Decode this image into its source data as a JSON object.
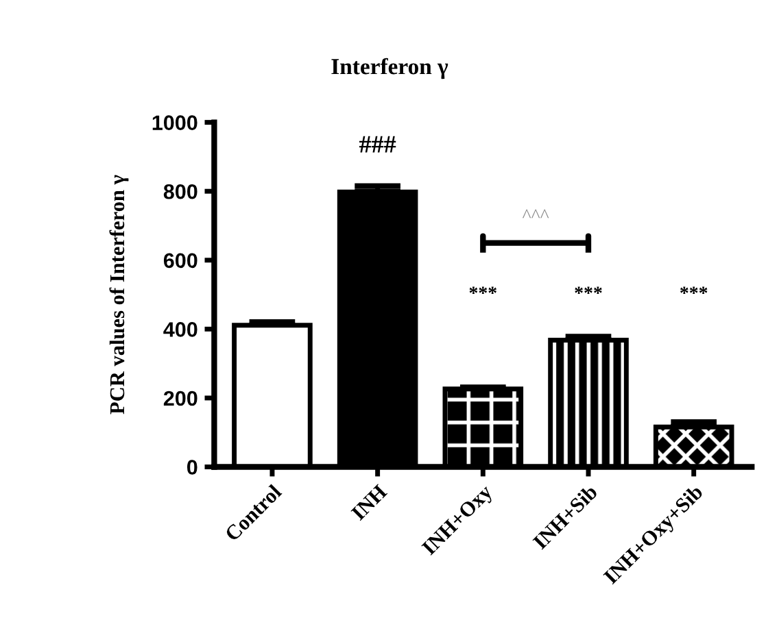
{
  "chart_data": {
    "type": "bar",
    "title": "Interferon γ",
    "ylabel": "PCR values of Interferon γ",
    "categories": [
      "Control",
      "INH",
      "INH+Oxy",
      "INH+Sib",
      "INH+Oxy+Sib"
    ],
    "values": [
      411,
      798,
      226,
      368,
      116
    ],
    "colors": [
      "#ffffff",
      "#000000",
      "#000000",
      "#000000",
      "#000000"
    ],
    "errors": [
      [
        411,
        420
      ],
      [
        798,
        815
      ],
      [
        226,
        231
      ],
      [
        368,
        378
      ],
      [
        116,
        130
      ]
    ],
    "ylim": [
      0,
      1000
    ],
    "yticks": [
      0,
      200,
      400,
      600,
      800,
      1000
    ],
    "grid": false,
    "annotations": [
      "###",
      "***",
      "***",
      "***",
      "^^^"
    ]
  }
}
